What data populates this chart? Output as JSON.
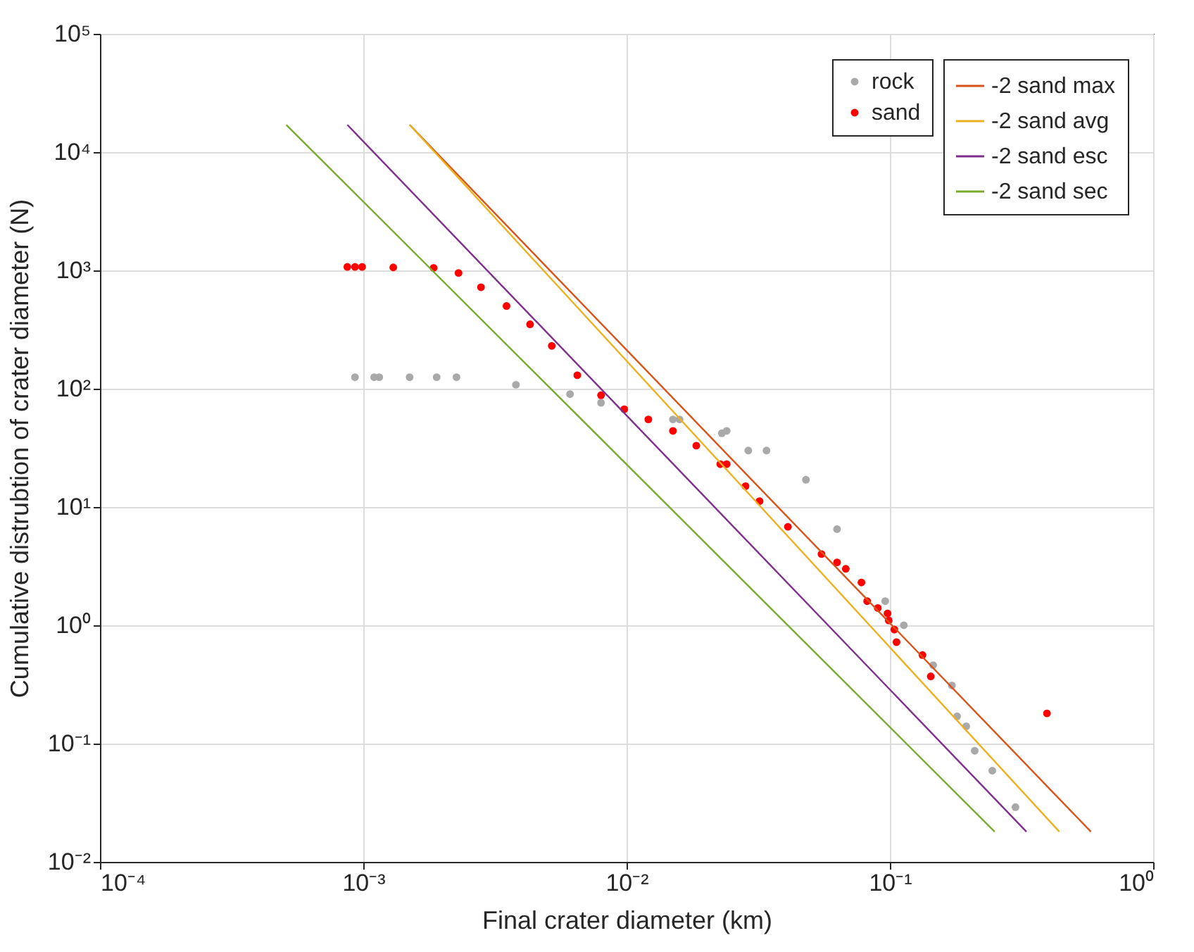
{
  "chart_data": {
    "type": "scatter",
    "xlabel": "Final crater diameter (km)",
    "ylabel": "Cumulative distrubtion of crater diameter (N)",
    "log": "xy",
    "grid": true,
    "legend": "top right",
    "xlim": [
      0.0001,
      1
    ],
    "ylim": [
      0.01,
      100000
    ],
    "xticks": [
      {
        "value": 0.0001,
        "label": "10⁻⁴"
      },
      {
        "value": 0.001,
        "label": "10⁻³"
      },
      {
        "value": 0.01,
        "label": "10⁻²"
      },
      {
        "value": 0.1,
        "label": "10⁻¹"
      },
      {
        "value": 1,
        "label": "10⁰"
      }
    ],
    "yticks": [
      {
        "value": 0.01,
        "label": "10⁻²"
      },
      {
        "value": 0.1,
        "label": "10⁻¹"
      },
      {
        "value": 1,
        "label": "10⁰"
      },
      {
        "value": 10,
        "label": "10¹"
      },
      {
        "value": 100,
        "label": "10²"
      },
      {
        "value": 1000,
        "label": "10³"
      },
      {
        "value": 10000,
        "label": "10⁴"
      },
      {
        "value": 100000,
        "label": "10⁵"
      }
    ],
    "series": [
      {
        "name": "rock",
        "marker": "circle",
        "color": "#a9a9a9",
        "x": [
          0.00093,
          0.0011,
          0.00115,
          0.0015,
          0.0019,
          0.00226,
          0.0038,
          0.0061,
          0.008,
          0.0098,
          0.015,
          0.0159,
          0.023,
          0.024,
          0.029,
          0.034,
          0.048,
          0.063,
          0.078,
          0.096,
          0.113,
          0.146,
          0.172,
          0.18,
          0.195,
          0.21,
          0.245,
          0.3
        ],
        "values": [
          125,
          125,
          125,
          125,
          125,
          125,
          108,
          90,
          76,
          null,
          55,
          55,
          42,
          44,
          30,
          30,
          17,
          6.5,
          null,
          1.6,
          1.0,
          0.46,
          0.31,
          0.17,
          0.14,
          0.087,
          0.059,
          0.029
        ]
      },
      {
        "name": "sand",
        "marker": "circle",
        "color": "#ff0000",
        "x": [
          0.00087,
          0.00093,
          0.00099,
          0.0013,
          0.00185,
          0.0023,
          0.0028,
          0.0035,
          0.0043,
          0.0052,
          0.0065,
          0.008,
          0.0098,
          0.0121,
          0.015,
          0.0184,
          0.0227,
          0.024,
          0.0283,
          0.032,
          0.041,
          0.055,
          0.063,
          0.068,
          0.078,
          0.082,
          0.09,
          0.098,
          0.099,
          0.104,
          0.106,
          0.133,
          0.143,
          0.395
        ],
        "values": [
          1070,
          1070,
          1070,
          1060,
          1050,
          950,
          720,
          500,
          350,
          230,
          130,
          88,
          67,
          55,
          44,
          33,
          23,
          23,
          15,
          11.2,
          6.8,
          4.0,
          3.4,
          3.0,
          2.3,
          1.6,
          1.4,
          1.26,
          1.1,
          0.92,
          0.72,
          0.56,
          0.37,
          0.18
        ]
      },
      {
        "name": "-2 sand max",
        "type": "line",
        "color": "#d95319",
        "x": [
          0.0015,
          0.58
        ],
        "values": [
          17000,
          0.018
        ]
      },
      {
        "name": "-2 sand avg",
        "type": "line",
        "color": "#edb120",
        "x": [
          0.0015,
          0.44
        ],
        "values": [
          17000,
          0.018
        ]
      },
      {
        "name": "-2 sand esc",
        "type": "line",
        "color": "#7e2f8e",
        "x": [
          0.00087,
          0.33
        ],
        "values": [
          17000,
          0.018
        ]
      },
      {
        "name": "-2 sand sec",
        "type": "line",
        "color": "#77ac30",
        "x": [
          0.00051,
          0.25
        ],
        "values": [
          17000,
          0.018
        ]
      }
    ]
  }
}
